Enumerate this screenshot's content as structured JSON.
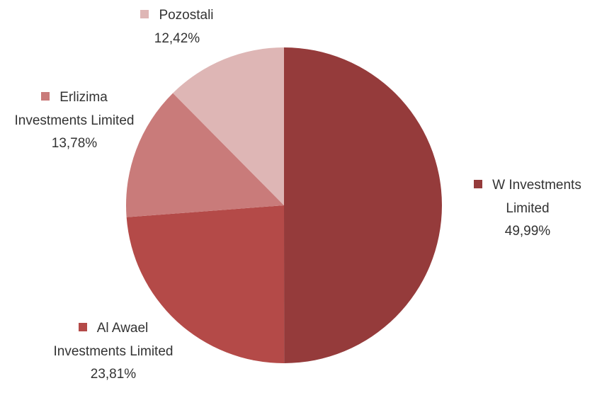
{
  "chart_data": {
    "type": "pie",
    "categories": [
      "W Investments Limited",
      "Al Awael Investments Limited",
      "Erlizima Investments Limited",
      "Pozostali"
    ],
    "values": [
      49.99,
      23.81,
      13.78,
      12.42
    ],
    "value_labels": [
      "49,99%",
      "23,81%",
      "13,78%",
      "12,42%"
    ],
    "colors": [
      "#953b3b",
      "#b44a48",
      "#c97b7a",
      "#deb6b5"
    ]
  }
}
